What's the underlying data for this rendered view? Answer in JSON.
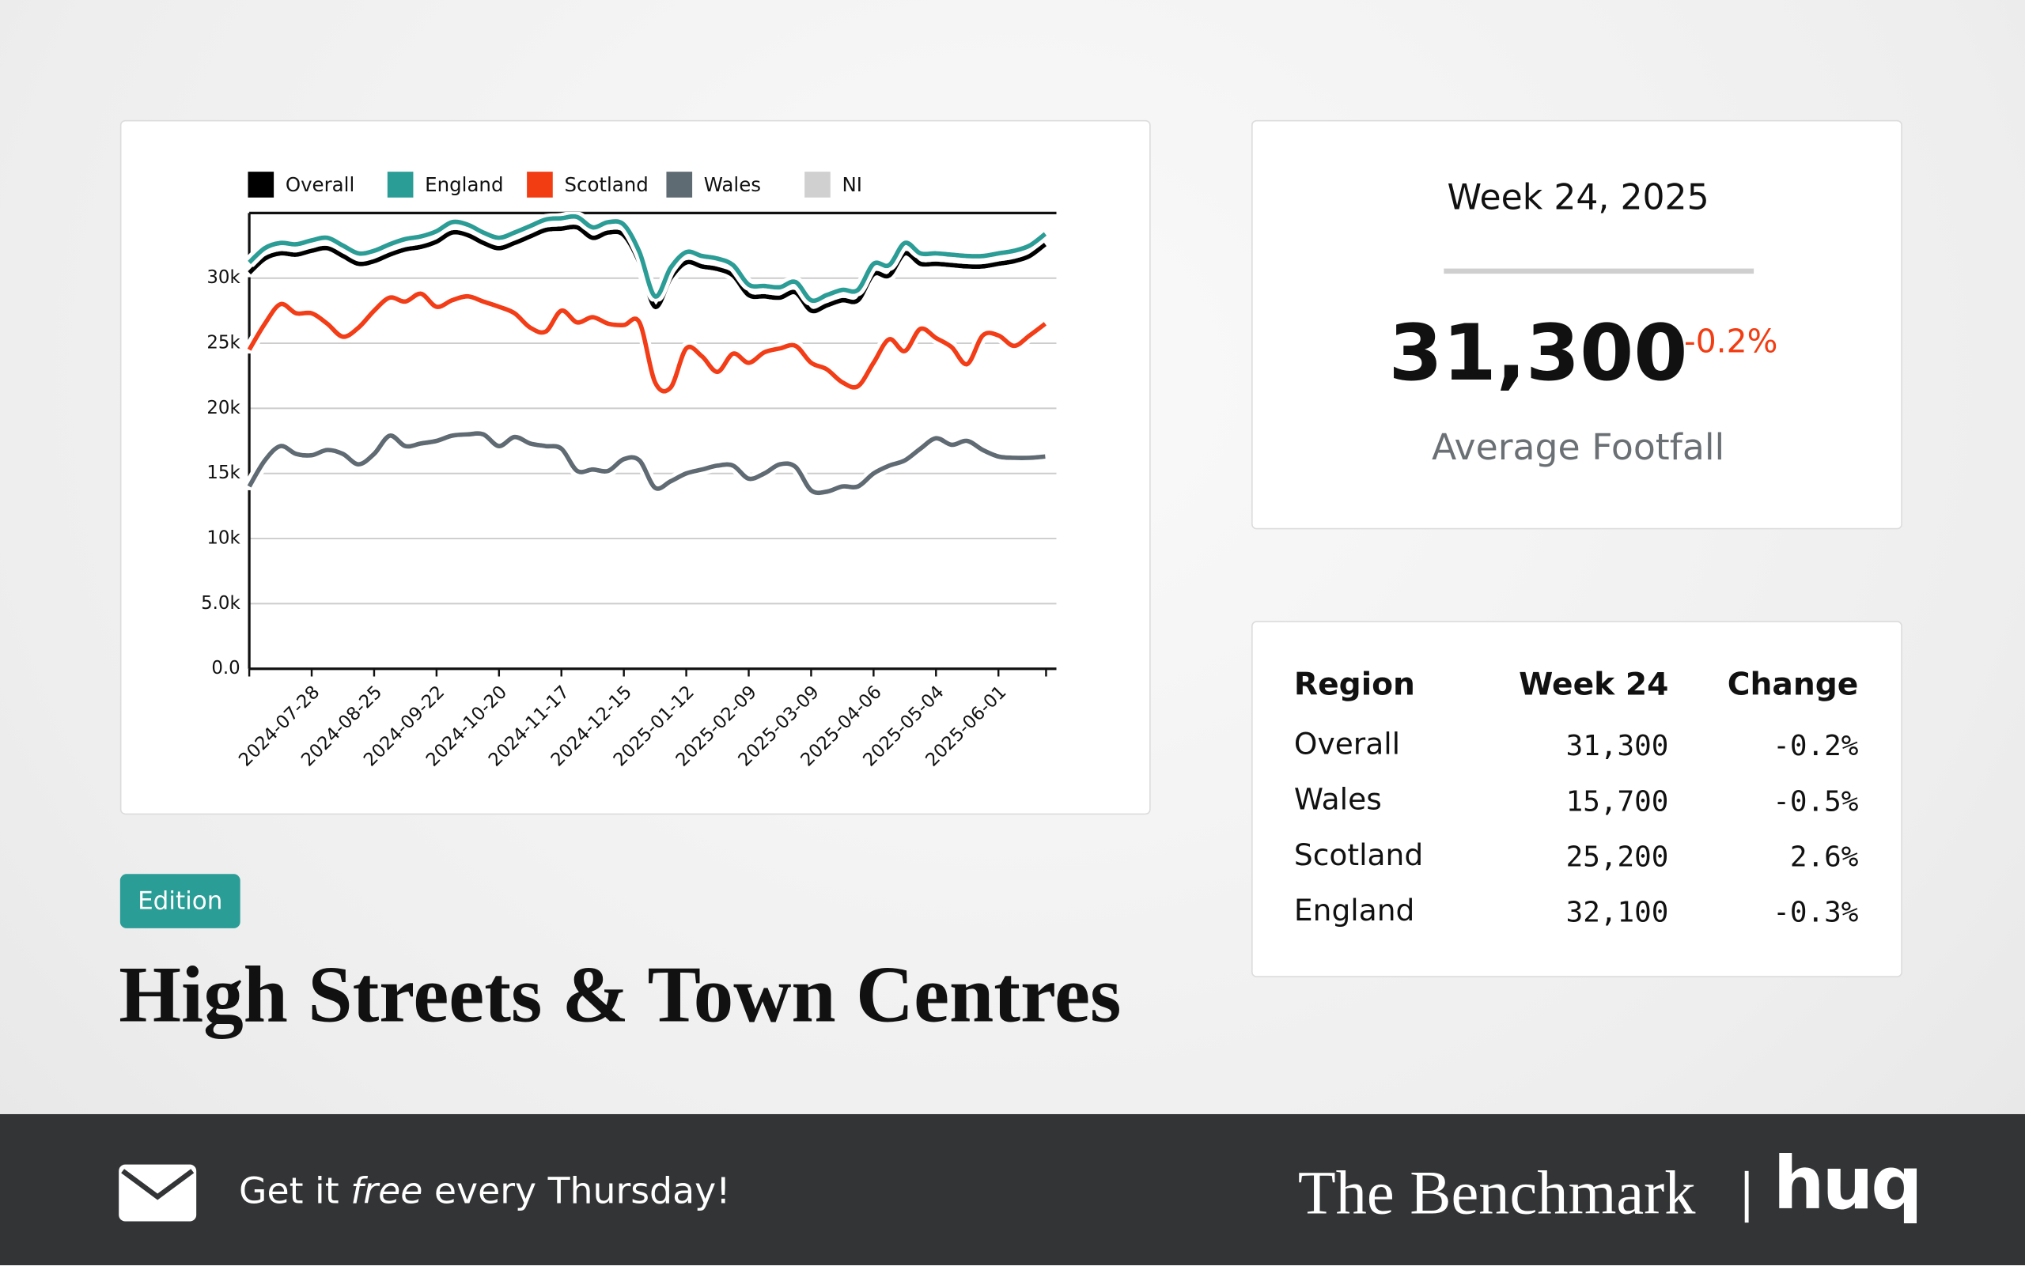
{
  "chart_data": {
    "type": "line",
    "x": [
      "2024-06-30",
      "2024-07-07",
      "2024-07-14",
      "2024-07-21",
      "2024-07-28",
      "2024-08-04",
      "2024-08-11",
      "2024-08-18",
      "2024-08-25",
      "2024-09-01",
      "2024-09-08",
      "2024-09-15",
      "2024-09-22",
      "2024-09-29",
      "2024-10-06",
      "2024-10-13",
      "2024-10-20",
      "2024-10-27",
      "2024-11-03",
      "2024-11-10",
      "2024-11-17",
      "2024-11-24",
      "2024-12-01",
      "2024-12-08",
      "2024-12-15",
      "2024-12-22",
      "2024-12-29",
      "2025-01-05",
      "2025-01-12",
      "2025-01-19",
      "2025-01-26",
      "2025-02-02",
      "2025-02-09",
      "2025-02-16",
      "2025-02-23",
      "2025-03-02",
      "2025-03-09",
      "2025-03-16",
      "2025-03-23",
      "2025-03-30",
      "2025-04-06",
      "2025-04-13",
      "2025-04-20",
      "2025-04-27",
      "2025-05-04",
      "2025-05-11",
      "2025-05-18",
      "2025-05-25",
      "2025-06-01",
      "2025-06-08",
      "2025-06-15",
      "2025-06-22"
    ],
    "series": [
      {
        "name": "Overall",
        "color": "#000000",
        "values": [
          30400,
          31500,
          31900,
          31800,
          32100,
          32300,
          31700,
          31100,
          31300,
          31800,
          32200,
          32400,
          32800,
          33500,
          33300,
          32700,
          32300,
          32700,
          33200,
          33700,
          33800,
          33900,
          33100,
          33500,
          33300,
          31200,
          27800,
          30000,
          31200,
          30900,
          30700,
          30200,
          28700,
          28600,
          28500,
          28900,
          27500,
          27900,
          28300,
          28300,
          30300,
          30200,
          31900,
          31100,
          31100,
          31000,
          30900,
          30900,
          31100,
          31300,
          31700,
          32600
        ]
      },
      {
        "name": "England",
        "color": "#2a9d96",
        "values": [
          31200,
          32300,
          32700,
          32600,
          32900,
          33100,
          32500,
          31900,
          32100,
          32600,
          33000,
          33200,
          33600,
          34300,
          34100,
          33500,
          33100,
          33500,
          34000,
          34500,
          34600,
          34700,
          33900,
          34300,
          34100,
          32000,
          28600,
          30800,
          32000,
          31700,
          31500,
          31000,
          29500,
          29400,
          29300,
          29700,
          28300,
          28700,
          29100,
          29100,
          31100,
          31000,
          32700,
          31900,
          31900,
          31800,
          31700,
          31700,
          31900,
          32100,
          32500,
          33400
        ]
      },
      {
        "name": "Scotland",
        "color": "#f23c12",
        "values": [
          24500,
          26500,
          28000,
          27300,
          27300,
          26500,
          25500,
          26200,
          27500,
          28500,
          28200,
          28800,
          27800,
          28300,
          28600,
          28200,
          27800,
          27300,
          26200,
          25900,
          27500,
          26600,
          27000,
          26500,
          26400,
          26600,
          22000,
          21600,
          24600,
          24000,
          22800,
          24200,
          23500,
          24300,
          24600,
          24800,
          23500,
          23000,
          22000,
          21700,
          23500,
          25300,
          24400,
          26100,
          25400,
          24700,
          23400,
          25600,
          25600,
          24800,
          25600,
          26500
        ]
      },
      {
        "name": "Wales",
        "color": "#5f6b73",
        "values": [
          14000,
          16000,
          17100,
          16500,
          16400,
          16800,
          16500,
          15700,
          16500,
          17900,
          17100,
          17300,
          17500,
          17900,
          18000,
          18000,
          17100,
          17800,
          17300,
          17100,
          16900,
          15200,
          15300,
          15200,
          16100,
          16000,
          13900,
          14400,
          15000,
          15300,
          15600,
          15600,
          14600,
          15000,
          15700,
          15500,
          13700,
          13600,
          14000,
          14000,
          15000,
          15600,
          16000,
          16900,
          17700,
          17200,
          17500,
          16800,
          16300,
          16200,
          16200,
          16300
        ]
      },
      {
        "name": "NI",
        "color": "#d0d0d0",
        "values": [
          null,
          null,
          null,
          null,
          null,
          null,
          null,
          null,
          null,
          null,
          null,
          null,
          null,
          null,
          null,
          null,
          null,
          null,
          null,
          null,
          null,
          null,
          null,
          null,
          null,
          null,
          null,
          null,
          null,
          null,
          null,
          null,
          null,
          null,
          null,
          null,
          null,
          null,
          null,
          null,
          null,
          null,
          null,
          null,
          null,
          null,
          null,
          null,
          null,
          null,
          null,
          null
        ]
      }
    ],
    "xlim": [
      "2024-06-30",
      "2025-06-27"
    ],
    "xticks": [
      "2024-07-28",
      "2024-08-25",
      "2024-09-22",
      "2024-10-20",
      "2024-11-17",
      "2024-12-15",
      "2025-01-12",
      "2025-02-09",
      "2025-03-09",
      "2025-04-06",
      "2025-05-04",
      "2025-06-01"
    ],
    "ylim": [
      0,
      35000
    ],
    "yticks": [
      {
        "value": 0,
        "label": "0.0"
      },
      {
        "value": 5000,
        "label": "5.0k"
      },
      {
        "value": 10000,
        "label": "10k"
      },
      {
        "value": 15000,
        "label": "15k"
      },
      {
        "value": 20000,
        "label": "20k"
      },
      {
        "value": 25000,
        "label": "25k"
      },
      {
        "value": 30000,
        "label": "30k"
      }
    ],
    "grid": true,
    "legend": "top"
  },
  "stat": {
    "title": "Week 24, 2025",
    "value": "31,300",
    "change": "-0.2%",
    "label": "Average Footfall"
  },
  "table": {
    "header": [
      "Region",
      "Week 24",
      "Change"
    ],
    "rows": [
      [
        "Overall",
        "31,300",
        "-0.2%"
      ],
      [
        "Wales",
        "15,700",
        "-0.5%"
      ],
      [
        "Scotland",
        "25,200",
        "2.6%"
      ],
      [
        "England",
        "32,100",
        "-0.3%"
      ]
    ]
  },
  "badge": "Edition",
  "headline": "High Streets & Town Centres",
  "footer": {
    "cta": [
      "Get it ",
      "free",
      " every Thursday!"
    ],
    "brand": "The Benchmark",
    "logo": "huq"
  }
}
